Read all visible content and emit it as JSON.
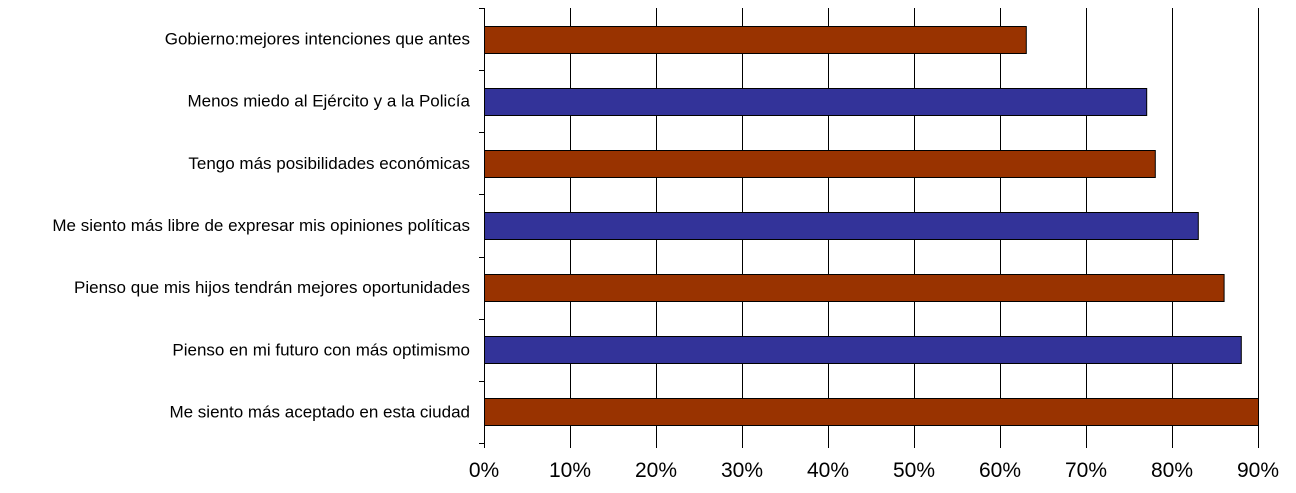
{
  "chart_data": {
    "type": "bar",
    "orientation": "horizontal",
    "categories": [
      "Gobierno:mejores intenciones que antes",
      "Menos miedo al Ejército y a la Policía",
      "Tengo más posibilidades económicas",
      "Me siento más libre de expresar mis opiniones políticas",
      "Pienso que mis hijos tendrán mejores oportunidades",
      "Pienso en mi futuro con más optimismo",
      "Me siento más aceptado en esta ciudad"
    ],
    "values": [
      63,
      77,
      78,
      83,
      86,
      88,
      90
    ],
    "bar_colors": [
      "#993300",
      "#333399",
      "#993300",
      "#333399",
      "#993300",
      "#333399",
      "#993300"
    ],
    "xlim": [
      0,
      90
    ],
    "xticks": [
      0,
      10,
      20,
      30,
      40,
      50,
      60,
      70,
      80,
      90
    ],
    "xtick_labels": [
      "0%",
      "10%",
      "20%",
      "30%",
      "40%",
      "50%",
      "60%",
      "70%",
      "80%",
      "90%"
    ],
    "grid": "vertical",
    "title": "",
    "xlabel": "",
    "ylabel": "",
    "legend": "none"
  }
}
